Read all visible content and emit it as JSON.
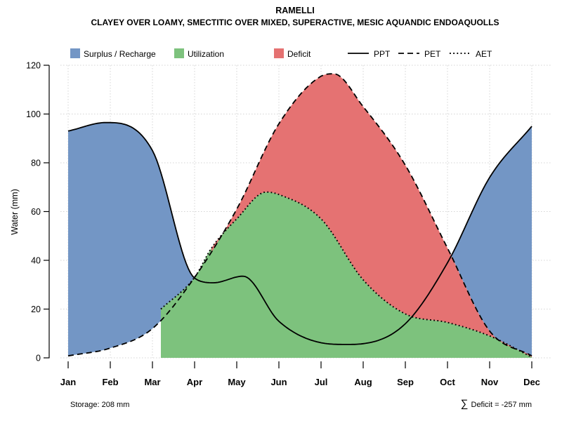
{
  "chart_data": {
    "type": "area",
    "title": "RAMELLI",
    "subtitle": "CLAYEY OVER LOAMY, SMECTITIC OVER MIXED, SUPERACTIVE, MESIC AQUANDIC ENDOAQUOLLS",
    "ylabel": "Water (mm)",
    "ylim": [
      0,
      120
    ],
    "yticks": [
      0,
      20,
      40,
      60,
      80,
      100,
      120
    ],
    "months": [
      "Jan",
      "Feb",
      "Mar",
      "Apr",
      "May",
      "Jun",
      "Jul",
      "Aug",
      "Sep",
      "Oct",
      "Nov",
      "Dec"
    ],
    "grid": true,
    "legend_position": "top",
    "regions": [
      {
        "name": "Surplus / Recharge",
        "color": "#7396C5"
      },
      {
        "name": "Utilization",
        "color": "#7DC27D"
      },
      {
        "name": "Deficit",
        "color": "#E57272"
      }
    ],
    "series": [
      {
        "name": "PPT",
        "style": "solid",
        "monthly_values": [
          93,
          96,
          85,
          33,
          33,
          15,
          6,
          6,
          14,
          39,
          74,
          95
        ],
        "control_points": [
          [
            0,
            93
          ],
          [
            0.9,
            96.5
          ],
          [
            2,
            85
          ],
          [
            3,
            32.7
          ],
          [
            3.45,
            30.8
          ],
          [
            4.15,
            33.5
          ],
          [
            5,
            15
          ],
          [
            6,
            6.2
          ],
          [
            6.6,
            5.5
          ],
          [
            7,
            5.8
          ],
          [
            8,
            14
          ],
          [
            9,
            39
          ],
          [
            10,
            74
          ],
          [
            11,
            95
          ]
        ]
      },
      {
        "name": "PET",
        "style": "dashed",
        "monthly_values": [
          1,
          4,
          12,
          33,
          61,
          96,
          116,
          103,
          79,
          45,
          11,
          1
        ],
        "control_points": [
          [
            0,
            0.8
          ],
          [
            1,
            4
          ],
          [
            2,
            12
          ],
          [
            3,
            33
          ],
          [
            4,
            61
          ],
          [
            5,
            96
          ],
          [
            6,
            115.5
          ],
          [
            6.3,
            116.5
          ],
          [
            7,
            103
          ],
          [
            8,
            79
          ],
          [
            9,
            45
          ],
          [
            10,
            11
          ],
          [
            11,
            0.8
          ]
        ]
      },
      {
        "name": "AET",
        "style": "dotted",
        "monthly_values": [
          1,
          4,
          12,
          33,
          57,
          67,
          57,
          32,
          18,
          15,
          9,
          0
        ],
        "control_points": [
          [
            2.2,
            20
          ],
          [
            3,
            33
          ],
          [
            3.4,
            45
          ],
          [
            4,
            57
          ],
          [
            4.7,
            68
          ],
          [
            5,
            67
          ],
          [
            6,
            57
          ],
          [
            7,
            32
          ],
          [
            8,
            18
          ],
          [
            9,
            14.5
          ],
          [
            10,
            9
          ],
          [
            11,
            0.3
          ]
        ]
      }
    ],
    "crossings": {
      "ppt_pet_spring_month": 3.0,
      "ppt_pet_fall_month": 9.1,
      "pet_aet_split_month": 3.4,
      "green_start_month": 2.2
    },
    "annotations": {
      "storage": "Storage: 208 mm",
      "sigma": "∑",
      "deficit": "Deficit = -257 mm"
    }
  }
}
